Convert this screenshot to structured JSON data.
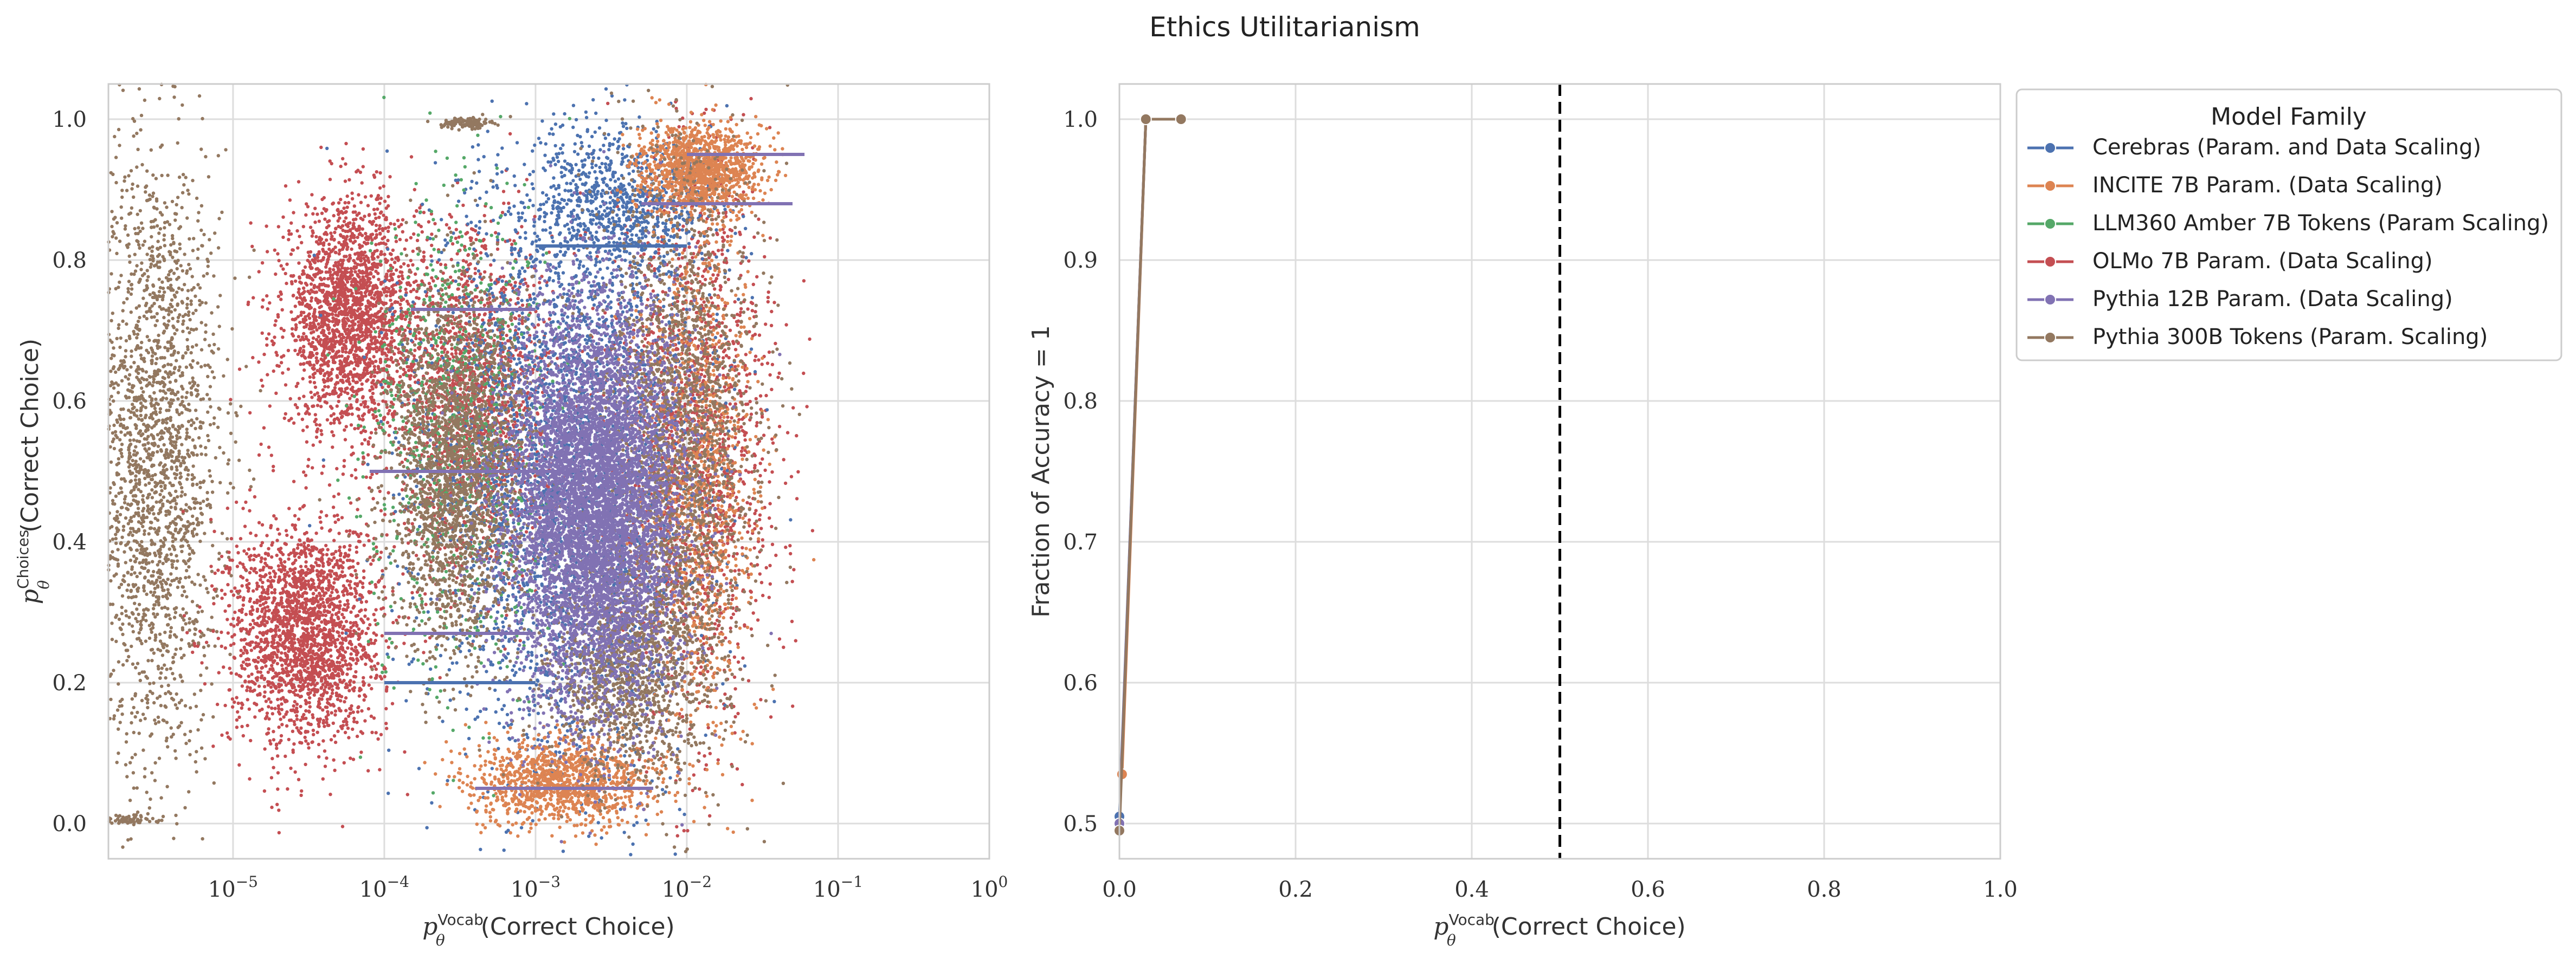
{
  "figure": {
    "title": "Ethics Utilitarianism"
  },
  "chart_data": [
    {
      "type": "scatter",
      "xlabel_main": "p",
      "xlabel_sup": "Vocab",
      "xlabel_sub": "θ",
      "xlabel_tail": "(Correct Choice)",
      "ylabel_main": "p",
      "ylabel_sup": "Choices",
      "ylabel_sub": "θ",
      "ylabel_tail": "(Correct Choice)",
      "xscale": "log",
      "xlim": [
        1.5e-06,
        1.0
      ],
      "ylim": [
        -0.05,
        1.05
      ],
      "x_ticks": [
        {
          "value": 1e-05,
          "base": "10",
          "exp": "−5"
        },
        {
          "value": 0.0001,
          "base": "10",
          "exp": "−4"
        },
        {
          "value": 0.001,
          "base": "10",
          "exp": "−3"
        },
        {
          "value": 0.01,
          "base": "10",
          "exp": "−2"
        },
        {
          "value": 0.1,
          "base": "10",
          "exp": "−1"
        },
        {
          "value": 1,
          "base": "10",
          "exp": "0"
        }
      ],
      "y_ticks": [
        {
          "value": 0.0,
          "label": "0.0"
        },
        {
          "value": 0.2,
          "label": "0.2"
        },
        {
          "value": 0.4,
          "label": "0.4"
        },
        {
          "value": 0.6,
          "label": "0.6"
        },
        {
          "value": 0.8,
          "label": "0.8"
        },
        {
          "value": 1.0,
          "label": "1.0"
        }
      ],
      "grid": true,
      "clusters": [
        {
          "series": "Pythia 300B Tokens (Param. Scaling)",
          "x_center": 3e-06,
          "y_center": 0.52,
          "x_spread_decades": 0.22,
          "y_spread": 0.22,
          "count": 2200
        },
        {
          "series": "Pythia 300B Tokens (Param. Scaling)",
          "x_center": 0.00035,
          "y_center": 0.995,
          "x_spread_decades": 0.08,
          "y_spread": 0.004,
          "count": 120
        },
        {
          "series": "Pythia 300B Tokens (Param. Scaling)",
          "x_center": 2e-06,
          "y_center": 0.005,
          "x_spread_decades": 0.1,
          "y_spread": 0.004,
          "count": 60
        },
        {
          "series": "OLMo 7B Param. (Data Scaling)",
          "x_center": 6e-05,
          "y_center": 0.72,
          "x_spread_decades": 0.22,
          "y_spread": 0.08,
          "count": 2200
        },
        {
          "series": "OLMo 7B Param. (Data Scaling)",
          "x_center": 3e-05,
          "y_center": 0.27,
          "x_spread_decades": 0.25,
          "y_spread": 0.08,
          "count": 2200
        },
        {
          "series": "OLMo 7B Param. (Data Scaling)",
          "x_center": 0.0004,
          "y_center": 0.6,
          "x_spread_decades": 0.25,
          "y_spread": 0.12,
          "count": 1600
        },
        {
          "series": "OLMo 7B Param. (Data Scaling)",
          "x_center": 0.012,
          "y_center": 0.55,
          "x_spread_decades": 0.25,
          "y_spread": 0.2,
          "count": 1600
        },
        {
          "series": "Cerebras (Param. and Data Scaling)",
          "x_center": 0.0015,
          "y_center": 0.5,
          "x_spread_decades": 0.45,
          "y_spread": 0.22,
          "count": 3200
        },
        {
          "series": "Cerebras (Param. and Data Scaling)",
          "x_center": 0.004,
          "y_center": 0.88,
          "x_spread_decades": 0.3,
          "y_spread": 0.05,
          "count": 800
        },
        {
          "series": "INCITE 7B Param. (Data Scaling)",
          "x_center": 0.012,
          "y_center": 0.93,
          "x_spread_decades": 0.2,
          "y_spread": 0.03,
          "count": 1200
        },
        {
          "series": "INCITE 7B Param. (Data Scaling)",
          "x_center": 0.0015,
          "y_center": 0.06,
          "x_spread_decades": 0.3,
          "y_spread": 0.03,
          "count": 1200
        },
        {
          "series": "INCITE 7B Param. (Data Scaling)",
          "x_center": 0.012,
          "y_center": 0.5,
          "x_spread_decades": 0.18,
          "y_spread": 0.2,
          "count": 1000
        },
        {
          "series": "LLM360 Amber 7B Tokens (Param Scaling)",
          "x_center": 0.0003,
          "y_center": 0.55,
          "x_spread_decades": 0.3,
          "y_spread": 0.18,
          "count": 700
        },
        {
          "series": "Pythia 300B Tokens (Param. Scaling)",
          "x_center": 0.0003,
          "y_center": 0.5,
          "x_spread_decades": 0.22,
          "y_spread": 0.13,
          "count": 2200
        },
        {
          "series": "Pythia 300B Tokens (Param. Scaling)",
          "x_center": 0.009,
          "y_center": 0.55,
          "x_spread_decades": 0.25,
          "y_spread": 0.2,
          "count": 2000
        },
        {
          "series": "Pythia 300B Tokens (Param. Scaling)",
          "x_center": 0.004,
          "y_center": 0.22,
          "x_spread_decades": 0.25,
          "y_spread": 0.08,
          "count": 1200
        },
        {
          "series": "Pythia 12B Param. (Data Scaling)",
          "x_center": 0.0025,
          "y_center": 0.45,
          "x_spread_decades": 0.28,
          "y_spread": 0.14,
          "count": 6500
        }
      ],
      "horizontal_segments": [
        {
          "series": "Pythia 12B Param. (Data Scaling)",
          "y": 0.95,
          "x_from": 0.01,
          "x_to": 0.06
        },
        {
          "series": "Pythia 12B Param. (Data Scaling)",
          "y": 0.88,
          "x_from": 0.005,
          "x_to": 0.05
        },
        {
          "series": "Pythia 12B Param. (Data Scaling)",
          "y": 0.73,
          "x_from": 0.00015,
          "x_to": 0.001
        },
        {
          "series": "Pythia 12B Param. (Data Scaling)",
          "y": 0.5,
          "x_from": 8e-05,
          "x_to": 0.0015
        },
        {
          "series": "Pythia 12B Param. (Data Scaling)",
          "y": 0.27,
          "x_from": 0.0001,
          "x_to": 0.001
        },
        {
          "series": "Pythia 12B Param. (Data Scaling)",
          "y": 0.05,
          "x_from": 0.0004,
          "x_to": 0.006
        },
        {
          "series": "Cerebras (Param. and Data Scaling)",
          "y": 0.82,
          "x_from": 0.001,
          "x_to": 0.01
        },
        {
          "series": "Cerebras (Param. and Data Scaling)",
          "y": 0.2,
          "x_from": 0.0001,
          "x_to": 0.001
        }
      ]
    },
    {
      "type": "line",
      "xlabel_main": "p",
      "xlabel_sup": "Vocab",
      "xlabel_sub": "θ",
      "xlabel_tail": "(Correct Choice)",
      "ylabel": "Fraction of Accuracy = 1",
      "xlim": [
        0.0,
        1.0
      ],
      "ylim": [
        0.475,
        1.025
      ],
      "x_ticks": [
        {
          "value": 0.0,
          "label": "0.0"
        },
        {
          "value": 0.2,
          "label": "0.2"
        },
        {
          "value": 0.4,
          "label": "0.4"
        },
        {
          "value": 0.6,
          "label": "0.6"
        },
        {
          "value": 0.8,
          "label": "0.8"
        },
        {
          "value": 1.0,
          "label": "1.0"
        }
      ],
      "y_ticks": [
        {
          "value": 0.5,
          "label": "0.5"
        },
        {
          "value": 0.6,
          "label": "0.6"
        },
        {
          "value": 0.7,
          "label": "0.7"
        },
        {
          "value": 0.8,
          "label": "0.8"
        },
        {
          "value": 0.9,
          "label": "0.9"
        },
        {
          "value": 1.0,
          "label": "1.0"
        }
      ],
      "vline": {
        "x": 0.5,
        "style": "dashed",
        "color": "#000000"
      },
      "grid": true,
      "series": [
        {
          "name": "Cerebras (Param. and Data Scaling)",
          "x": [
            0.0,
            0.03
          ],
          "y": [
            0.505,
            1.0
          ]
        },
        {
          "name": "INCITE 7B Param. (Data Scaling)",
          "x": [
            0.003,
            0.03
          ],
          "y": [
            0.535,
            1.0
          ]
        },
        {
          "name": "LLM360 Amber 7B Tokens (Param Scaling)",
          "x": [
            0.0,
            0.03
          ],
          "y": [
            0.5,
            1.0
          ]
        },
        {
          "name": "OLMo 7B Param. (Data Scaling)",
          "x": [
            0.0,
            0.03
          ],
          "y": [
            0.5,
            1.0
          ]
        },
        {
          "name": "Pythia 12B Param. (Data Scaling)",
          "x": [
            0.0,
            0.03
          ],
          "y": [
            0.5,
            1.0
          ]
        },
        {
          "name": "Pythia 300B Tokens (Param. Scaling)",
          "x": [
            0.0,
            0.03,
            0.07
          ],
          "y": [
            0.495,
            1.0,
            1.0
          ]
        }
      ]
    }
  ],
  "legend": {
    "title": "Model Family",
    "placement": "outside right of second chart",
    "items": [
      {
        "name": "Cerebras (Param. and Data Scaling)",
        "color": "#4c72b0"
      },
      {
        "name": "INCITE 7B Param. (Data Scaling)",
        "color": "#dd8452"
      },
      {
        "name": "LLM360 Amber 7B Tokens (Param Scaling)",
        "color": "#55a868"
      },
      {
        "name": "OLMo 7B Param. (Data Scaling)",
        "color": "#c44e52"
      },
      {
        "name": "Pythia 12B Param. (Data Scaling)",
        "color": "#8172b3"
      },
      {
        "name": "Pythia 300B Tokens (Param. Scaling)",
        "color": "#937860"
      }
    ]
  }
}
